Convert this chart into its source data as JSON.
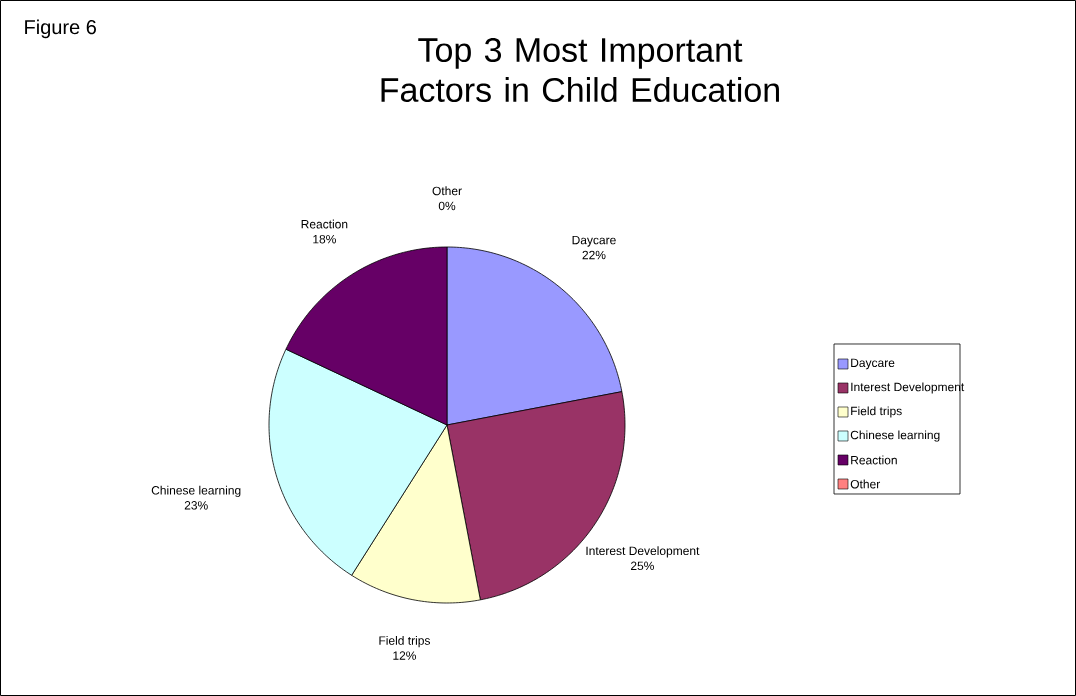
{
  "chart_data": {
    "type": "pie",
    "title": "Top 3 Most Important Factors in Child Education",
    "categories": [
      "Daycare",
      "Interest Development",
      "Field trips",
      "Chinese learning",
      "Reaction",
      "Other"
    ],
    "values": [
      22,
      25,
      12,
      23,
      18,
      0
    ],
    "value_labels": [
      "22%",
      "25%",
      "12%",
      "23%",
      "18%",
      "0%"
    ],
    "colors": [
      "#9999ff",
      "#993366",
      "#ffffcc",
      "#ccffff",
      "#660066",
      "#ff8080"
    ],
    "legend": "right",
    "annotations": [
      "Figure 6"
    ]
  }
}
